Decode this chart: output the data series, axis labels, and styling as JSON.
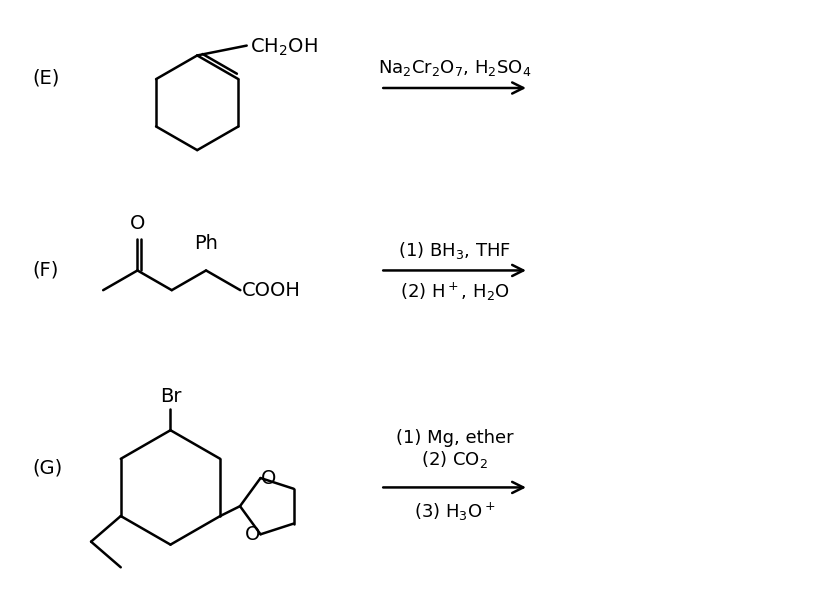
{
  "bg_color": "#ffffff",
  "text_color": "#000000",
  "fig_width": 8.3,
  "fig_height": 6.06,
  "label_E": "(E)",
  "label_F": "(F)",
  "label_G": "(G)",
  "reagents_E": "Na$_2$Cr$_2$O$_7$, H$_2$SO$_4$",
  "reagents_F1": "(1) BH$_3$, THF",
  "reagents_F2": "(2) H$^+$, H$_2$O",
  "reagents_G1": "(1) Mg, ether",
  "reagents_G2": "(2) CO$_2$",
  "reagents_G3": "(3) H$_3$O$^+$",
  "lw": 1.8,
  "fs": 14
}
